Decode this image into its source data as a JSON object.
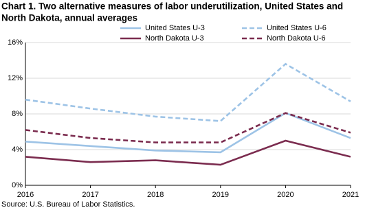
{
  "chart_data": {
    "type": "line",
    "title": [
      "Chart 1. Two alternative measures of labor underutilization, United States and",
      "North Dakota, annual averages"
    ],
    "source": "Source: U.S. Bureau of Labor Statistics.",
    "categories": [
      "2016",
      "2017",
      "2018",
      "2019",
      "2020",
      "2021"
    ],
    "series": [
      {
        "name": "United States U-3",
        "color": "#9dc3e6",
        "dashed": false,
        "values": [
          4.9,
          4.4,
          3.9,
          3.7,
          8.1,
          5.3
        ]
      },
      {
        "name": "United States U-6",
        "color": "#9dc3e6",
        "dashed": true,
        "values": [
          9.6,
          8.6,
          7.7,
          7.2,
          13.6,
          9.4
        ]
      },
      {
        "name": "North Dakota U-3",
        "color": "#7b2c4f",
        "dashed": false,
        "values": [
          3.2,
          2.6,
          2.8,
          2.3,
          5.0,
          3.2
        ]
      },
      {
        "name": "North Dakota U-6",
        "color": "#7b2c4f",
        "dashed": true,
        "values": [
          6.2,
          5.3,
          4.8,
          4.8,
          8.1,
          5.9
        ]
      }
    ],
    "ylim": [
      0,
      16
    ],
    "yticks": [
      {
        "value": 0,
        "label": "0%"
      },
      {
        "value": 4,
        "label": "4%"
      },
      {
        "value": 8,
        "label": "8%"
      },
      {
        "value": 12,
        "label": "12%"
      },
      {
        "value": 16,
        "label": "16%"
      }
    ],
    "grid": true
  }
}
